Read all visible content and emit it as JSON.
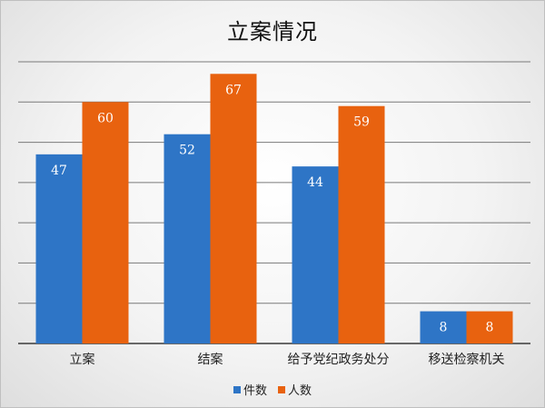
{
  "chart_data": {
    "type": "bar",
    "title": "立案情况",
    "categories": [
      "立案",
      "结案",
      "给予党纪政务处分",
      "移送检察机关"
    ],
    "series": [
      {
        "name": "件数",
        "values": [
          47,
          52,
          44,
          8
        ],
        "color": "#2e75c6"
      },
      {
        "name": "人数",
        "values": [
          60,
          67,
          59,
          8
        ],
        "color": "#e8620f"
      }
    ],
    "ylim": [
      0,
      70
    ],
    "ytick_step": 10,
    "xlabel": "",
    "ylabel": "",
    "grid": true,
    "legend_position": "bottom"
  }
}
